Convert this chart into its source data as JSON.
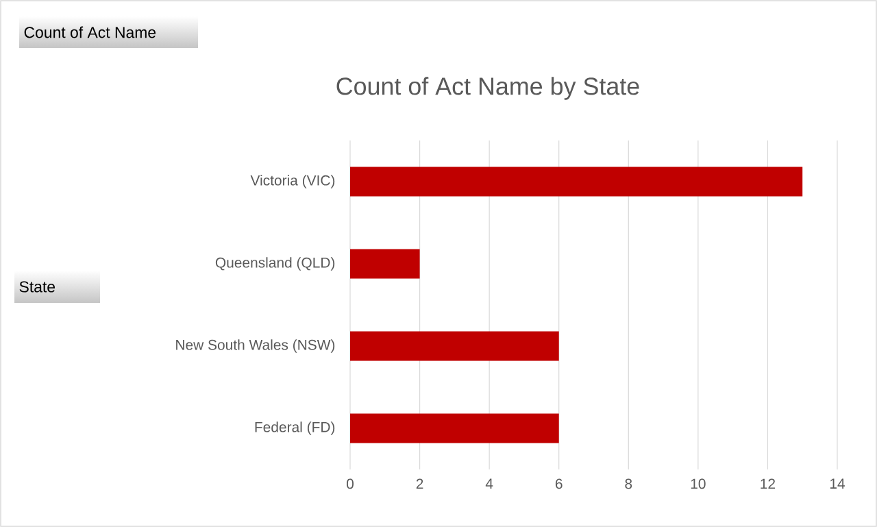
{
  "chart_data": {
    "type": "bar",
    "orientation": "horizontal",
    "title": "Count of Act Name by State",
    "annotations": [
      "Count of Act Name",
      "State"
    ],
    "categories": [
      "Victoria (VIC)",
      "Queensland (QLD)",
      "New South Wales (NSW)",
      "Federal (FD)"
    ],
    "values": [
      13,
      2,
      6,
      6
    ],
    "color": "#c00000",
    "xlim": [
      0,
      14
    ],
    "xticks": [
      0,
      2,
      4,
      6,
      8,
      10,
      12,
      14
    ],
    "grid": "x"
  }
}
